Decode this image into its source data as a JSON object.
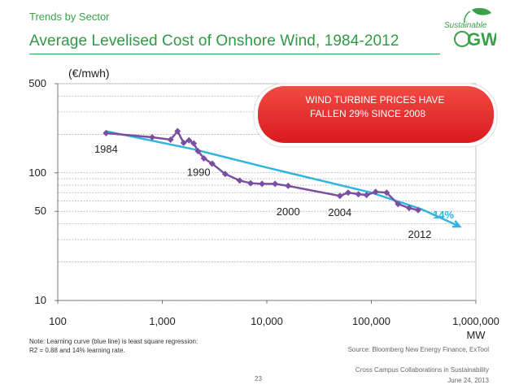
{
  "section_label": "Trends by Sector",
  "page_title": "Average Levelised Cost of Onshore Wind, 1984-2012",
  "logo": {
    "top_text": "Sustainable",
    "main_text": "GW",
    "color": "#3aa04a"
  },
  "callout": {
    "line1": "WIND TURBINE PRICES HAVE",
    "line2": "FALLEN 29% SINCE 2008",
    "color": "#e8262a"
  },
  "note": {
    "line1": "Note: Learning curve (blue line) is least square regression:",
    "line2": "R2 = 0.88 and 14% learning rate."
  },
  "source": "Source: Bloomberg New Energy Finance, ExTool",
  "footer": {
    "line1": "Cross Campus Collaborations in Sustainability",
    "line2": "June 24, 2013",
    "page_number": "23"
  },
  "chart_data": {
    "type": "line",
    "unit_label": "(€/mwh)",
    "xlabel": "MW",
    "x_scale": "log",
    "y_scale": "log",
    "xlim": [
      100,
      1000000
    ],
    "ylim": [
      10,
      500
    ],
    "x_ticks": [
      100,
      1000,
      10000,
      100000,
      1000000
    ],
    "x_tick_labels": [
      "100",
      "1,000",
      "10,000",
      "100,000",
      "1,000,000"
    ],
    "y_ticks": [
      10,
      50,
      100,
      500
    ],
    "y_tick_labels": [
      "10",
      "50",
      "100",
      "500"
    ],
    "grid": true,
    "series": [
      {
        "name": "Levelised cost",
        "color": "#7b4fa0",
        "x": [
          290,
          800,
          1200,
          1400,
          1600,
          1800,
          2000,
          2200,
          2500,
          3000,
          4000,
          5500,
          7000,
          9000,
          12000,
          16000,
          50000,
          60000,
          75000,
          90000,
          110000,
          140000,
          180000,
          230000,
          280000
        ],
        "y": [
          205,
          190,
          182,
          212,
          172,
          180,
          170,
          148,
          130,
          118,
          98,
          87,
          83,
          82,
          82,
          79,
          66,
          70,
          68,
          67,
          71,
          70,
          57,
          53,
          51
        ]
      },
      {
        "name": "Learning curve",
        "color": "#2fb5de",
        "x": [
          290,
          2000,
          10000,
          100000,
          300000,
          700000
        ],
        "y": [
          212,
          153,
          110,
          70,
          52,
          38
        ]
      }
    ],
    "annotations": [
      {
        "text": "1984",
        "x": 290,
        "y": 205
      },
      {
        "text": "1990",
        "x": 2000,
        "y": 170
      },
      {
        "text": "2000",
        "x": 16000,
        "y": 79
      },
      {
        "text": "2004",
        "x": 50000,
        "y": 66
      },
      {
        "text": "2012",
        "x": 280000,
        "y": 51
      },
      {
        "text": "14%",
        "x": 700000,
        "y": 38
      }
    ]
  }
}
